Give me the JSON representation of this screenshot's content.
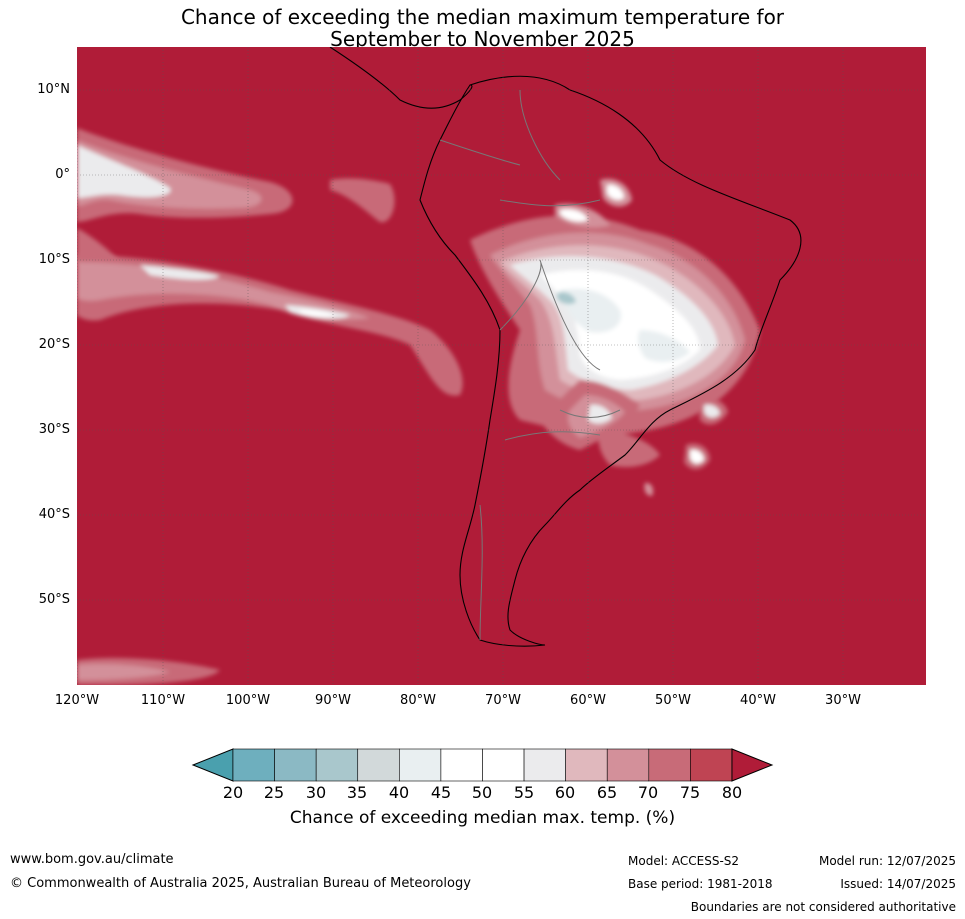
{
  "title": {
    "line1": "Chance of exceeding the median maximum temperature for",
    "line2": "September to November 2025"
  },
  "lat_labels": [
    "10°N",
    "0°",
    "10°S",
    "20°S",
    "30°S",
    "40°S",
    "50°S"
  ],
  "lon_labels": [
    "120°W",
    "110°W",
    "100°W",
    "90°W",
    "80°W",
    "70°W",
    "60°W",
    "50°W",
    "40°W",
    "30°W"
  ],
  "colorbar": {
    "ticks": [
      "20",
      "25",
      "30",
      "35",
      "40",
      "45",
      "50",
      "55",
      "60",
      "65",
      "70",
      "75",
      "80"
    ],
    "colors": [
      "#4aa0ae",
      "#6eafbe",
      "#8bb9c4",
      "#a9c7cc",
      "#d2d9da",
      "#e9eff1",
      "#ffffff",
      "#ffffff",
      "#ebebed",
      "#e0b8bd",
      "#d3909a",
      "#c86b78",
      "#bf4453",
      "#b01c38"
    ],
    "label": "Chance of exceeding median max. temp. (%)"
  },
  "footer": {
    "website": "www.bom.gov.au/climate",
    "copyright": "© Commonwealth of Australia 2025, Australian Bureau of Meteorology",
    "model": "Model: ACCESS-S2",
    "base_period": "Base period: 1981-2018",
    "model_run": "Model run: 12/07/2025",
    "issued": "Issued: 14/07/2025",
    "disclaimer": "Boundaries are not considered authoritative"
  }
}
